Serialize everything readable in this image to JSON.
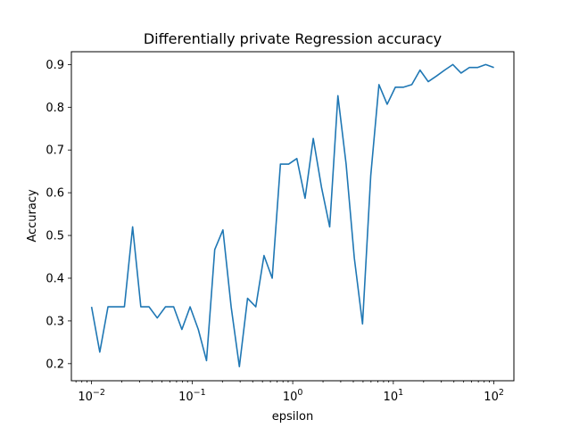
{
  "chart_data": {
    "type": "line",
    "title": "Differentially private Regression accuracy",
    "xlabel": "epsilon",
    "ylabel": "Accuracy",
    "xscale": "log",
    "xlim": [
      0.0063,
      158
    ],
    "ylim": [
      0.16,
      0.93
    ],
    "grid": false,
    "legend": "none",
    "line_color": "#1f77b4",
    "x_ticks": [
      {
        "value": 0.01,
        "base": "10",
        "exp": "−2"
      },
      {
        "value": 0.1,
        "base": "10",
        "exp": "−1"
      },
      {
        "value": 1,
        "base": "10",
        "exp": "0"
      },
      {
        "value": 10,
        "base": "10",
        "exp": "1"
      },
      {
        "value": 100,
        "base": "10",
        "exp": "2"
      }
    ],
    "y_ticks": [
      "0.2",
      "0.3",
      "0.4",
      "0.5",
      "0.6",
      "0.7",
      "0.8",
      "0.9"
    ],
    "series": [
      {
        "x": [
          0.01,
          0.01207,
          0.01456,
          0.01758,
          0.02121,
          0.0256,
          0.03089,
          0.03728,
          0.04498,
          0.05429,
          0.06551,
          0.07906,
          0.09541,
          0.11514,
          0.13895,
          0.16768,
          0.20236,
          0.2442,
          0.2947,
          0.35565,
          0.42919,
          0.51795,
          0.62506,
          0.75431,
          0.9103,
          1.09854,
          1.32571,
          1.59986,
          1.9307,
          2.32995,
          2.81177,
          3.39322,
          4.09492,
          4.94171,
          5.96362,
          7.19686,
          8.68511,
          10.4811,
          12.6486,
          15.2642,
          18.4207,
          22.23,
          26.827,
          32.3746,
          39.0694,
          47.1487,
          56.8987,
          68.6649,
          82.8643,
          100.0
        ],
        "y": [
          0.333,
          0.227,
          0.333,
          0.333,
          0.333,
          0.52,
          0.333,
          0.333,
          0.307,
          0.333,
          0.333,
          0.28,
          0.333,
          0.28,
          0.207,
          0.467,
          0.513,
          0.333,
          0.193,
          0.353,
          0.333,
          0.453,
          0.4,
          0.667,
          0.667,
          0.68,
          0.587,
          0.727,
          0.613,
          0.52,
          0.827,
          0.667,
          0.447,
          0.293,
          0.64,
          0.853,
          0.807,
          0.847,
          0.847,
          0.853,
          0.887,
          0.86,
          0.873,
          0.887,
          0.9,
          0.88,
          0.893,
          0.893,
          0.9,
          0.893
        ]
      }
    ]
  }
}
